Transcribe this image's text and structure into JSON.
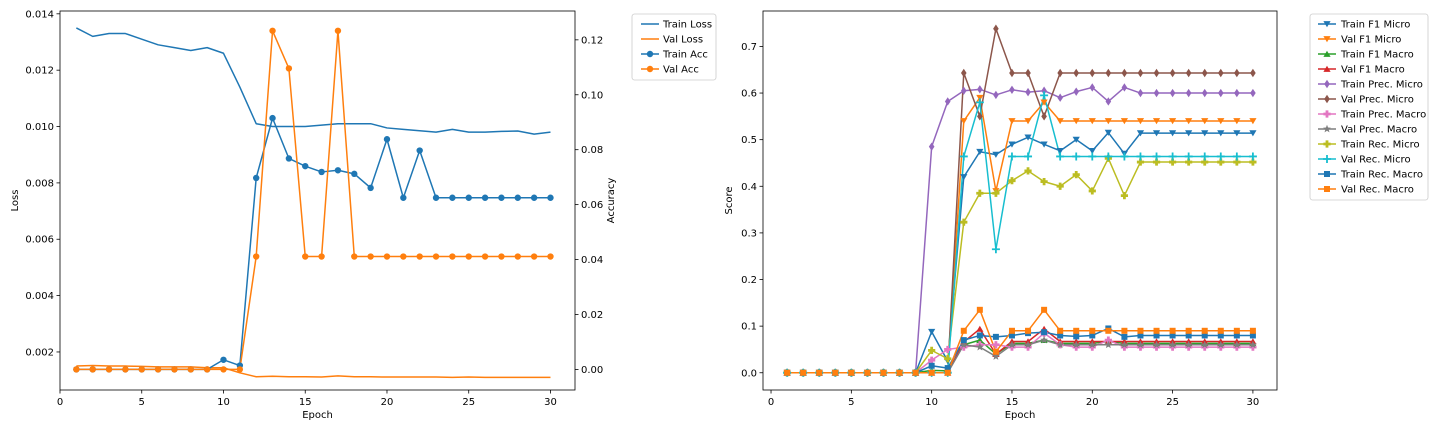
{
  "chart_data": [
    {
      "type": "line",
      "xlabel": "Epoch",
      "ylabel": "Loss",
      "y2label": "Accuracy",
      "x": [
        1,
        2,
        3,
        4,
        5,
        6,
        7,
        8,
        9,
        10,
        11,
        12,
        13,
        14,
        15,
        16,
        17,
        18,
        19,
        20,
        21,
        22,
        23,
        24,
        25,
        26,
        27,
        28,
        29,
        30
      ],
      "xlim": [
        0,
        31.5
      ],
      "ylim": [
        0.00065,
        0.0141
      ],
      "y2lim": [
        -0.0075,
        0.1305
      ],
      "xticks": [
        "0",
        "5",
        "10",
        "15",
        "20",
        "25",
        "30"
      ],
      "yticks": [
        "0.002",
        "0.004",
        "0.006",
        "0.008",
        "0.010",
        "0.012",
        "0.014"
      ],
      "y2ticks": [
        "0.00",
        "0.02",
        "0.04",
        "0.06",
        "0.08",
        "0.10",
        "0.12"
      ],
      "legend_position": "outside-top-right",
      "series": [
        {
          "name": "Train Loss",
          "axis": "left",
          "color": "#1f77b4",
          "marker": "none",
          "values": [
            0.0135,
            0.0132,
            0.0133,
            0.0133,
            0.0131,
            0.0129,
            0.0128,
            0.0127,
            0.0128,
            0.0126,
            0.0114,
            0.0101,
            0.01,
            0.01,
            0.01,
            0.01005,
            0.0101,
            0.0101,
            0.0101,
            0.00995,
            0.0099,
            0.00985,
            0.0098,
            0.0099,
            0.0098,
            0.0098,
            0.00983,
            0.00984,
            0.00973,
            0.0098
          ]
        },
        {
          "name": "Val Loss",
          "axis": "left",
          "color": "#ff7f0e",
          "marker": "none",
          "values": [
            0.0015,
            0.00152,
            0.0015,
            0.0015,
            0.00149,
            0.00147,
            0.00147,
            0.00147,
            0.00144,
            0.00144,
            0.00126,
            0.00112,
            0.00114,
            0.00112,
            0.00112,
            0.00111,
            0.00115,
            0.00112,
            0.00112,
            0.00111,
            0.00111,
            0.00111,
            0.00111,
            0.0011,
            0.00111,
            0.0011,
            0.0011,
            0.0011,
            0.0011,
            0.0011
          ]
        },
        {
          "name": "Train Acc",
          "axis": "right",
          "color": "#1f77b4",
          "marker": "circle",
          "values": [
            0,
            0,
            0,
            0,
            0,
            0,
            0,
            0,
            0,
            0.0035,
            0.0014,
            0.0697,
            0.0915,
            0.0768,
            0.074,
            0.0719,
            0.0725,
            0.0712,
            0.0661,
            0.0838,
            0.0625,
            0.0797,
            0.0625,
            0.0625,
            0.0625,
            0.0625,
            0.0625,
            0.0625,
            0.0625,
            0.0625
          ]
        },
        {
          "name": "Val Acc",
          "axis": "right",
          "color": "#ff7f0e",
          "marker": "circle",
          "values": [
            0,
            0,
            0,
            0,
            0,
            0,
            0,
            0,
            0,
            0,
            0,
            0.0411,
            0.1233,
            0.1096,
            0.0411,
            0.0411,
            0.1233,
            0.0411,
            0.0411,
            0.0411,
            0.0411,
            0.0411,
            0.0411,
            0.0411,
            0.0411,
            0.0411,
            0.0411,
            0.0411,
            0.0411,
            0.0411
          ]
        }
      ]
    },
    {
      "type": "line",
      "xlabel": "Epoch",
      "ylabel": "Score",
      "x": [
        1,
        2,
        3,
        4,
        5,
        6,
        7,
        8,
        9,
        10,
        11,
        12,
        13,
        14,
        15,
        16,
        17,
        18,
        19,
        20,
        21,
        22,
        23,
        24,
        25,
        26,
        27,
        28,
        29,
        30
      ],
      "xlim": [
        -0.5,
        31.5
      ],
      "ylim": [
        -0.037,
        0.776
      ],
      "xticks": [
        "0",
        "5",
        "10",
        "15",
        "20",
        "25",
        "30"
      ],
      "yticks": [
        "0.0",
        "0.1",
        "0.2",
        "0.3",
        "0.4",
        "0.5",
        "0.6",
        "0.7"
      ],
      "legend_position": "outside-top-right",
      "series": [
        {
          "name": "Train F1 Micro",
          "color": "#1f77b4",
          "marker": "triangle-down",
          "values": [
            0,
            0,
            0,
            0,
            0,
            0,
            0,
            0,
            0,
            0.088,
            0.025,
            0.42,
            0.474,
            0.468,
            0.49,
            0.505,
            0.49,
            0.476,
            0.5,
            0.476,
            0.515,
            0.47,
            0.514,
            0.514,
            0.514,
            0.514,
            0.514,
            0.514,
            0.514,
            0.514
          ]
        },
        {
          "name": "Val F1 Micro",
          "color": "#ff7f0e",
          "marker": "triangle-down",
          "values": [
            0,
            0,
            0,
            0,
            0,
            0,
            0,
            0,
            0,
            0,
            0,
            0.54,
            0.59,
            0.39,
            0.54,
            0.54,
            0.58,
            0.54,
            0.54,
            0.54,
            0.54,
            0.54,
            0.54,
            0.54,
            0.54,
            0.54,
            0.54,
            0.54,
            0.54,
            0.54
          ]
        },
        {
          "name": "Train F1 Macro",
          "color": "#2ca02c",
          "marker": "triangle-up",
          "values": [
            0,
            0,
            0,
            0,
            0,
            0,
            0,
            0,
            0,
            0.005,
            0.004,
            0.06,
            0.07,
            0.04,
            0.063,
            0.063,
            0.07,
            0.063,
            0.063,
            0.063,
            0.067,
            0.063,
            0.063,
            0.063,
            0.063,
            0.063,
            0.063,
            0.063,
            0.063,
            0.063
          ]
        },
        {
          "name": "Val F1 Macro",
          "color": "#d62728",
          "marker": "triangle-up",
          "values": [
            0,
            0,
            0,
            0,
            0,
            0,
            0,
            0,
            0,
            0,
            0,
            0.066,
            0.094,
            0.04,
            0.067,
            0.067,
            0.094,
            0.067,
            0.067,
            0.067,
            0.067,
            0.067,
            0.067,
            0.067,
            0.067,
            0.067,
            0.067,
            0.067,
            0.067,
            0.067
          ]
        },
        {
          "name": "Train Prec. Micro",
          "color": "#9467bd",
          "marker": "diamond",
          "values": [
            0,
            0,
            0,
            0,
            0,
            0,
            0,
            0,
            0,
            0.485,
            0.582,
            0.605,
            0.608,
            0.596,
            0.607,
            0.602,
            0.605,
            0.59,
            0.603,
            0.612,
            0.582,
            0.612,
            0.6,
            0.6,
            0.6,
            0.6,
            0.6,
            0.6,
            0.6,
            0.6
          ]
        },
        {
          "name": "Val Prec. Micro",
          "color": "#8c564b",
          "marker": "diamond",
          "values": [
            0,
            0,
            0,
            0,
            0,
            0,
            0,
            0,
            0,
            0,
            0,
            0.643,
            0.55,
            0.738,
            0.643,
            0.643,
            0.55,
            0.643,
            0.643,
            0.643,
            0.643,
            0.643,
            0.643,
            0.643,
            0.643,
            0.643,
            0.643,
            0.643,
            0.643,
            0.643
          ]
        },
        {
          "name": "Train Prec. Macro",
          "color": "#e377c2",
          "marker": "plus-filled",
          "values": [
            0,
            0,
            0,
            0,
            0,
            0,
            0,
            0,
            0,
            0.027,
            0.05,
            0.055,
            0.06,
            0.06,
            0.055,
            0.055,
            0.085,
            0.06,
            0.055,
            0.055,
            0.07,
            0.055,
            0.055,
            0.055,
            0.055,
            0.055,
            0.055,
            0.055,
            0.055,
            0.055
          ]
        },
        {
          "name": "Val Prec. Macro",
          "color": "#7f7f7f",
          "marker": "star",
          "values": [
            0,
            0,
            0,
            0,
            0,
            0,
            0,
            0,
            0,
            0,
            0,
            0.06,
            0.055,
            0.035,
            0.06,
            0.06,
            0.07,
            0.06,
            0.06,
            0.06,
            0.06,
            0.06,
            0.06,
            0.06,
            0.06,
            0.06,
            0.06,
            0.06,
            0.06,
            0.06
          ]
        },
        {
          "name": "Train Rec. Micro",
          "color": "#bcbd22",
          "marker": "plus-filled",
          "values": [
            0,
            0,
            0,
            0,
            0,
            0,
            0,
            0,
            0,
            0.048,
            0.03,
            0.323,
            0.385,
            0.385,
            0.412,
            0.433,
            0.41,
            0.4,
            0.425,
            0.39,
            0.46,
            0.38,
            0.452,
            0.452,
            0.452,
            0.452,
            0.452,
            0.452,
            0.452,
            0.452
          ]
        },
        {
          "name": "Val Rec. Micro",
          "color": "#17becf",
          "marker": "plus",
          "values": [
            0,
            0,
            0,
            0,
            0,
            0,
            0,
            0,
            0,
            0,
            0,
            0.464,
            0.58,
            0.265,
            0.464,
            0.464,
            0.595,
            0.464,
            0.464,
            0.464,
            0.464,
            0.464,
            0.464,
            0.464,
            0.464,
            0.464,
            0.464,
            0.464,
            0.464,
            0.464
          ]
        },
        {
          "name": "Train Rec. Macro",
          "color": "#1f77b4",
          "marker": "square",
          "values": [
            0,
            0,
            0,
            0,
            0,
            0,
            0,
            0,
            0,
            0.015,
            0.01,
            0.07,
            0.08,
            0.077,
            0.08,
            0.085,
            0.087,
            0.08,
            0.078,
            0.08,
            0.095,
            0.077,
            0.08,
            0.08,
            0.08,
            0.08,
            0.08,
            0.08,
            0.08,
            0.08
          ]
        },
        {
          "name": "Val Rec. Macro",
          "color": "#ff7f0e",
          "marker": "square",
          "values": [
            0,
            0,
            0,
            0,
            0,
            0,
            0,
            0,
            0,
            0,
            0,
            0.09,
            0.135,
            0.045,
            0.09,
            0.09,
            0.135,
            0.09,
            0.09,
            0.09,
            0.09,
            0.09,
            0.09,
            0.09,
            0.09,
            0.09,
            0.09,
            0.09,
            0.09,
            0.09
          ]
        }
      ]
    }
  ]
}
